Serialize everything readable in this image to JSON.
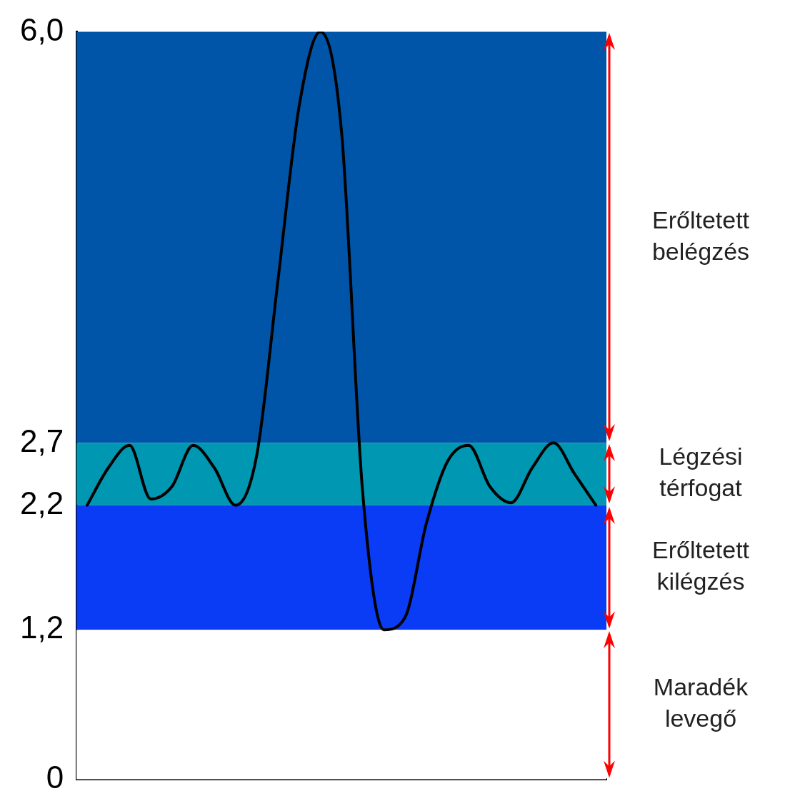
{
  "chart_data": {
    "type": "line",
    "categories": [
      null,
      null,
      null,
      null,
      null,
      null,
      null,
      null,
      null,
      null,
      null,
      null,
      null,
      null,
      null,
      null,
      null,
      null,
      null,
      null,
      null,
      null,
      null,
      null,
      null
    ],
    "series": [
      {
        "color": "#000000",
        "values": [
          2.2,
          2.5,
          2.68,
          2.25,
          2.35,
          2.68,
          2.5,
          2.2,
          2.6,
          4.0,
          5.4,
          6.0,
          5.2,
          2.3,
          1.2,
          1.3,
          2.05,
          2.55,
          2.68,
          2.35,
          2.22,
          2.5,
          2.7,
          2.45,
          2.2
        ]
      }
    ],
    "ylim": [
      0,
      6
    ],
    "yticks": [
      0,
      {
        "value": 1.2,
        "label": "1,2"
      },
      {
        "value": 2.2,
        "label": "2,2"
      },
      {
        "value": 2.7,
        "label": "2,7"
      },
      {
        "value": 6,
        "label": "6,0"
      }
    ],
    "bands": [
      {
        "axis": "y",
        "from": 2.7,
        "to": 6,
        "label": "Erőltetett belégzés",
        "color": "#0055a8"
      },
      {
        "axis": "y",
        "from": 2.2,
        "to": 2.7,
        "label": "Légzési térfogat",
        "color": "#0097b2"
      },
      {
        "axis": "y",
        "from": 1.2,
        "to": 2.2,
        "label": "Erőltetett kilégzés",
        "color": "#0a3cf5"
      },
      {
        "axis": "y",
        "from": 0,
        "to": 1.2,
        "label": "Maradék levegő",
        "color": "#ffffff"
      }
    ],
    "tick_labels": "y",
    "grid": false,
    "legend": false,
    "marker": "none",
    "line_style": "solid"
  }
}
